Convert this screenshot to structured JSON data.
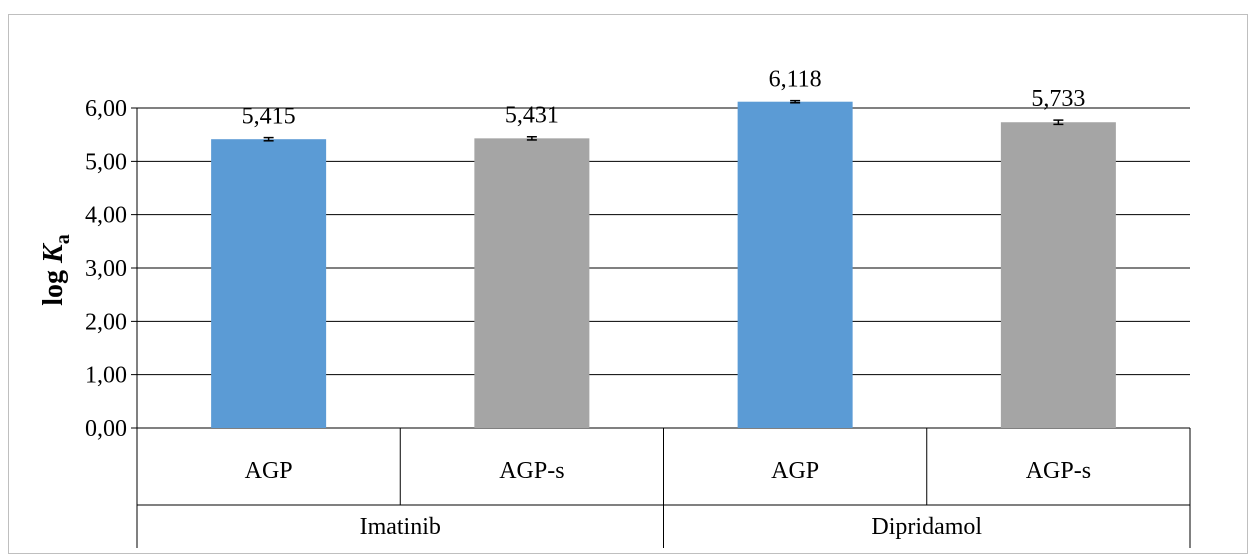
{
  "chart_data": {
    "type": "bar",
    "ylabel_main": "log ",
    "ylabel_italic": "K",
    "ylabel_sub": "a",
    "ylim": [
      0,
      6
    ],
    "yticks": [
      "0,00",
      "1,00",
      "2,00",
      "3,00",
      "4,00",
      "5,00",
      "6,00"
    ],
    "grid": true,
    "groups": [
      {
        "name": "Imatinib",
        "categories": [
          "AGP",
          "AGP-s"
        ]
      },
      {
        "name": "Dipridamol",
        "categories": [
          "AGP",
          "AGP-s"
        ]
      }
    ],
    "bars": [
      {
        "group": "Imatinib",
        "category": "AGP",
        "value": 5.415,
        "label": "5,415",
        "error": 0.03,
        "color": "#5b9bd5"
      },
      {
        "group": "Imatinib",
        "category": "AGP-s",
        "value": 5.431,
        "label": "5,431",
        "error": 0.03,
        "color": "#a5a5a5"
      },
      {
        "group": "Dipridamol",
        "category": "AGP",
        "value": 6.118,
        "label": "6,118",
        "error": 0.02,
        "color": "#5b9bd5"
      },
      {
        "group": "Dipridamol",
        "category": "AGP-s",
        "value": 5.733,
        "label": "5,733",
        "error": 0.04,
        "color": "#a5a5a5"
      }
    ]
  }
}
